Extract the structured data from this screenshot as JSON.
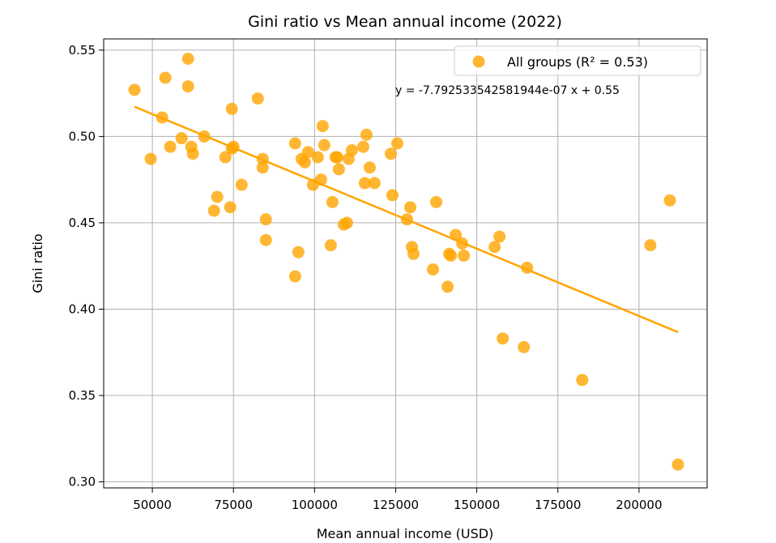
{
  "chart_data": {
    "type": "scatter",
    "title": "Gini ratio vs Mean annual income (2022)",
    "xlabel": "Mean annual income (USD)",
    "ylabel": "Gini ratio",
    "xlim": [
      35000,
      221000
    ],
    "ylim": [
      0.2965,
      0.5565
    ],
    "xticks": [
      50000,
      75000,
      100000,
      125000,
      150000,
      175000,
      200000
    ],
    "yticks": [
      0.3,
      0.35,
      0.4,
      0.45,
      0.5,
      0.55
    ],
    "grid": true,
    "legend_position": "top-right",
    "color": "#ffa500",
    "series": [
      {
        "name": "All groups (R² = 0.53)",
        "points": [
          [
            44500,
            0.527
          ],
          [
            53000,
            0.511
          ],
          [
            54000,
            0.534
          ],
          [
            49500,
            0.487
          ],
          [
            55500,
            0.494
          ],
          [
            59000,
            0.499
          ],
          [
            61000,
            0.545
          ],
          [
            61000,
            0.529
          ],
          [
            62000,
            0.494
          ],
          [
            62500,
            0.49
          ],
          [
            66000,
            0.5
          ],
          [
            69000,
            0.457
          ],
          [
            70000,
            0.465
          ],
          [
            72500,
            0.488
          ],
          [
            74000,
            0.459
          ],
          [
            74500,
            0.493
          ],
          [
            74500,
            0.516
          ],
          [
            75000,
            0.494
          ],
          [
            77500,
            0.472
          ],
          [
            82500,
            0.522
          ],
          [
            84000,
            0.487
          ],
          [
            84000,
            0.482
          ],
          [
            85000,
            0.44
          ],
          [
            85000,
            0.452
          ],
          [
            94000,
            0.496
          ],
          [
            94000,
            0.419
          ],
          [
            95000,
            0.433
          ],
          [
            96000,
            0.487
          ],
          [
            97000,
            0.485
          ],
          [
            98000,
            0.491
          ],
          [
            99500,
            0.472
          ],
          [
            101000,
            0.488
          ],
          [
            102000,
            0.475
          ],
          [
            102500,
            0.506
          ],
          [
            103000,
            0.495
          ],
          [
            105000,
            0.437
          ],
          [
            105500,
            0.462
          ],
          [
            106500,
            0.488
          ],
          [
            107000,
            0.488
          ],
          [
            107500,
            0.481
          ],
          [
            109000,
            0.449
          ],
          [
            110000,
            0.45
          ],
          [
            110500,
            0.487
          ],
          [
            111500,
            0.492
          ],
          [
            115000,
            0.494
          ],
          [
            115500,
            0.473
          ],
          [
            116000,
            0.501
          ],
          [
            117000,
            0.482
          ],
          [
            118500,
            0.473
          ],
          [
            123500,
            0.49
          ],
          [
            124000,
            0.466
          ],
          [
            125500,
            0.496
          ],
          [
            128500,
            0.452
          ],
          [
            129500,
            0.459
          ],
          [
            130000,
            0.436
          ],
          [
            130500,
            0.432
          ],
          [
            136500,
            0.423
          ],
          [
            137500,
            0.462
          ],
          [
            141000,
            0.413
          ],
          [
            141500,
            0.432
          ],
          [
            142000,
            0.431
          ],
          [
            143500,
            0.443
          ],
          [
            145500,
            0.438
          ],
          [
            146000,
            0.431
          ],
          [
            155500,
            0.436
          ],
          [
            157000,
            0.442
          ],
          [
            158000,
            0.383
          ],
          [
            164500,
            0.378
          ],
          [
            165500,
            0.424
          ],
          [
            182500,
            0.359
          ],
          [
            203500,
            0.437
          ],
          [
            209500,
            0.463
          ],
          [
            212000,
            0.31
          ]
        ]
      }
    ],
    "fit_line": {
      "slope": -7.792533542581944e-07,
      "intercept": 0.5519,
      "x_range": [
        44500,
        212000
      ]
    },
    "annotation": "y = -7.792533542581944e-07 x + 0.55",
    "legend_label": "All groups (R² = 0.53)"
  }
}
